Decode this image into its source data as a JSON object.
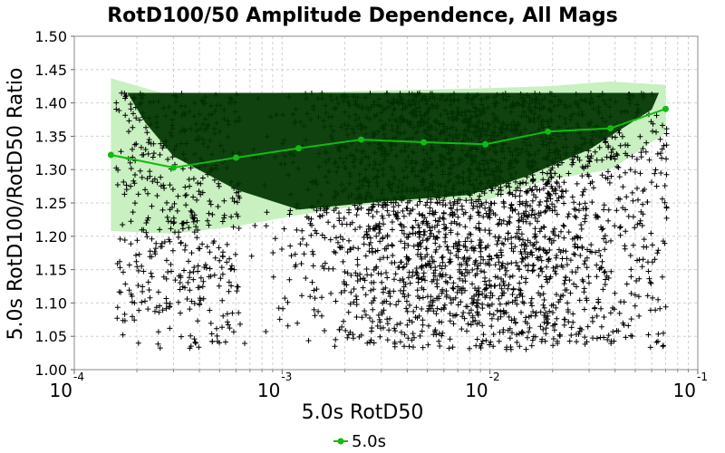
{
  "chart_data": {
    "type": "scatter",
    "title": "RotD100/50 Amplitude Dependence, All Mags",
    "xlabel": "5.0s RotD50",
    "ylabel": "5.0s RotD100/RotD50 Ratio",
    "xscale": "log",
    "xlim": [
      0.0001,
      0.1
    ],
    "ylim": [
      1.0,
      1.5
    ],
    "grid": true,
    "legend_position": "bottom-center",
    "x_ticks": [
      {
        "base": "10",
        "exp": "-4",
        "value": 0.0001
      },
      {
        "base": "10",
        "exp": "-3",
        "value": 0.001
      },
      {
        "base": "10",
        "exp": "-2",
        "value": 0.01
      },
      {
        "base": "10",
        "exp": "-1",
        "value": 0.1
      }
    ],
    "y_ticks": [
      "1.00",
      "1.05",
      "1.10",
      "1.15",
      "1.20",
      "1.25",
      "1.30",
      "1.35",
      "1.40",
      "1.45",
      "1.50"
    ],
    "scatter_color": "#000000",
    "dense_band_color": "#003300",
    "band_color": "#c8f0c0",
    "series": [
      {
        "name": "5.0s",
        "color": "#11bb11",
        "x": [
          0.00015,
          0.0003,
          0.0006,
          0.0012,
          0.0024,
          0.0048,
          0.0095,
          0.019,
          0.038,
          0.07
        ],
        "y": [
          1.322,
          1.303,
          1.318,
          1.332,
          1.345,
          1.341,
          1.338,
          1.357,
          1.362,
          1.391
        ],
        "upper": [
          1.437,
          1.41,
          1.413,
          1.416,
          1.418,
          1.42,
          1.422,
          1.425,
          1.432,
          1.427
        ],
        "lower": [
          1.208,
          1.204,
          1.215,
          1.232,
          1.246,
          1.254,
          1.254,
          1.285,
          1.3,
          1.355
        ]
      }
    ]
  }
}
